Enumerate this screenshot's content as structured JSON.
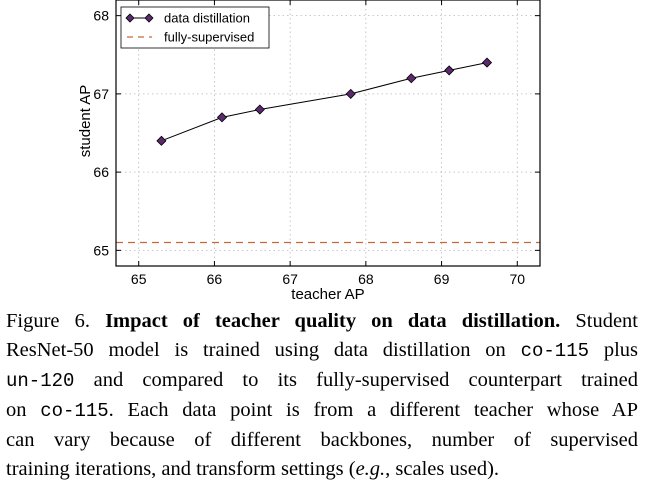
{
  "chart_data": {
    "type": "line",
    "xlabel": "teacher AP",
    "ylabel": "student AP",
    "xlim": [
      64.7,
      70.3
    ],
    "ylim": [
      64.8,
      68.2
    ],
    "xticks": [
      65,
      66,
      67,
      68,
      69,
      70
    ],
    "yticks": [
      65,
      66,
      67,
      68
    ],
    "grid": true,
    "legend_position": "top-left",
    "series": [
      {
        "name": "data distillation",
        "style": "line-with-diamond-markers",
        "color": "#000000",
        "marker_color": "#5b2a6e",
        "x": [
          65.3,
          66.1,
          66.6,
          67.8,
          68.6,
          69.1,
          69.6
        ],
        "y": [
          66.4,
          66.7,
          66.8,
          67.0,
          67.2,
          67.3,
          67.4
        ]
      },
      {
        "name": "fully-supervised",
        "style": "dashed-horizontal",
        "color": "#c8693a",
        "y_value": 65.1
      }
    ]
  },
  "caption": {
    "figure_label": "Figure 6.",
    "title": "Impact of teacher quality on data distillation.",
    "line1_tail": "Student",
    "line2_a": "ResNet-50 model is trained using data distillation on",
    "code1": "co-115",
    "line2_b": "plus",
    "code2": "un-120",
    "line3_a": "and compared to its fully-supervised counterpart trained",
    "line4_a": "on",
    "code3": "co-115",
    "line4_b": ". Each data point is from a different teacher whose AP",
    "line5": "can vary because of different backbones, number of supervised",
    "line6_a": "training iterations, and transform settings (",
    "eg": "e.g.",
    "line6_b": ", scales used)."
  }
}
